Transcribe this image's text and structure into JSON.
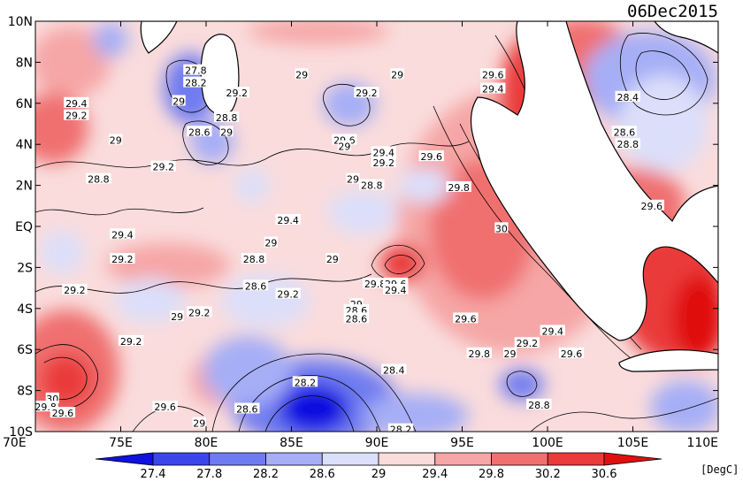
{
  "date_label": "06Dec2015",
  "unit_label": "[DegC]",
  "map": {
    "lat_ticks": [
      "10N",
      "8N",
      "6N",
      "4N",
      "2N",
      "EQ",
      "2S",
      "4S",
      "6S",
      "8S",
      "10S"
    ],
    "lon_ticks": [
      "70E",
      "75E",
      "80E",
      "85E",
      "90E",
      "95E",
      "100E",
      "105E",
      "110E"
    ],
    "lon_range": [
      70,
      110
    ],
    "lat_range": [
      -10,
      10
    ]
  },
  "colorbar": {
    "levels": [
      "27.4",
      "27.8",
      "28.2",
      "28.6",
      "29",
      "29.4",
      "29.8",
      "30.2",
      "30.6"
    ],
    "colors": [
      "#1010e0",
      "#3a46ea",
      "#6f7bf0",
      "#a6aef6",
      "#dcdffa",
      "#fadcdc",
      "#f6a6a6",
      "#f07070",
      "#ea3a3a",
      "#e01010"
    ]
  },
  "contour_labels": [
    {
      "text": "27.8",
      "lon": 79.4,
      "lat": 7.6
    },
    {
      "text": "28.2",
      "lon": 79.4,
      "lat": 7.0
    },
    {
      "text": "29",
      "lon": 85.6,
      "lat": 7.4
    },
    {
      "text": "29",
      "lon": 91.2,
      "lat": 7.4
    },
    {
      "text": "29.6",
      "lon": 96.8,
      "lat": 7.4
    },
    {
      "text": "29.4",
      "lon": 96.8,
      "lat": 6.7
    },
    {
      "text": "29.2",
      "lon": 81.8,
      "lat": 6.5
    },
    {
      "text": "29.2",
      "lon": 89.4,
      "lat": 6.5
    },
    {
      "text": "29.4",
      "lon": 72.4,
      "lat": 6.0
    },
    {
      "text": "29",
      "lon": 78.4,
      "lat": 6.1
    },
    {
      "text": "29.2",
      "lon": 72.4,
      "lat": 5.4
    },
    {
      "text": "28.8",
      "lon": 81.2,
      "lat": 5.3
    },
    {
      "text": "28.6",
      "lon": 79.6,
      "lat": 4.6
    },
    {
      "text": "29",
      "lon": 81.2,
      "lat": 4.6
    },
    {
      "text": "28.4",
      "lon": 104.7,
      "lat": 6.3
    },
    {
      "text": "28.6",
      "lon": 104.5,
      "lat": 4.6
    },
    {
      "text": "28.8",
      "lon": 104.7,
      "lat": 4.0
    },
    {
      "text": "29",
      "lon": 74.7,
      "lat": 4.2
    },
    {
      "text": "29.6",
      "lon": 88.1,
      "lat": 4.2
    },
    {
      "text": "29",
      "lon": 88.1,
      "lat": 3.9
    },
    {
      "text": "29.4",
      "lon": 90.4,
      "lat": 3.6
    },
    {
      "text": "29.6",
      "lon": 93.2,
      "lat": 3.4
    },
    {
      "text": "29.2",
      "lon": 90.4,
      "lat": 3.1
    },
    {
      "text": "29.2",
      "lon": 77.5,
      "lat": 2.9
    },
    {
      "text": "28.8",
      "lon": 73.7,
      "lat": 2.3
    },
    {
      "text": "29",
      "lon": 88.6,
      "lat": 2.3
    },
    {
      "text": "28.8",
      "lon": 89.7,
      "lat": 2.0
    },
    {
      "text": "29.8",
      "lon": 94.8,
      "lat": 1.9
    },
    {
      "text": "29.6",
      "lon": 106.1,
      "lat": 1.0
    },
    {
      "text": "29.4",
      "lon": 84.8,
      "lat": 0.3
    },
    {
      "text": "30",
      "lon": 97.3,
      "lat": -0.1
    },
    {
      "text": "29.4",
      "lon": 75.1,
      "lat": -0.4
    },
    {
      "text": "29",
      "lon": 83.8,
      "lat": -0.8
    },
    {
      "text": "29.2",
      "lon": 75.1,
      "lat": -1.6
    },
    {
      "text": "28.8",
      "lon": 82.8,
      "lat": -1.6
    },
    {
      "text": "29",
      "lon": 87.4,
      "lat": -1.6
    },
    {
      "text": "29.2",
      "lon": 72.3,
      "lat": -3.1
    },
    {
      "text": "29.8",
      "lon": 89.9,
      "lat": -2.8
    },
    {
      "text": "29.6",
      "lon": 91.1,
      "lat": -2.8
    },
    {
      "text": "28.6",
      "lon": 82.9,
      "lat": -2.9
    },
    {
      "text": "29.4",
      "lon": 91.1,
      "lat": -3.1
    },
    {
      "text": "29.2",
      "lon": 84.8,
      "lat": -3.3
    },
    {
      "text": "29",
      "lon": 88.8,
      "lat": -3.8
    },
    {
      "text": "29.2",
      "lon": 79.6,
      "lat": -4.2
    },
    {
      "text": "28.6",
      "lon": 88.8,
      "lat": -4.1
    },
    {
      "text": "28.6",
      "lon": 88.8,
      "lat": -4.5
    },
    {
      "text": "29",
      "lon": 78.3,
      "lat": -4.4
    },
    {
      "text": "29.6",
      "lon": 95.2,
      "lat": -4.5
    },
    {
      "text": "29.4",
      "lon": 100.3,
      "lat": -5.1
    },
    {
      "text": "29.2",
      "lon": 75.6,
      "lat": -5.6
    },
    {
      "text": "29.2",
      "lon": 98.8,
      "lat": -5.7
    },
    {
      "text": "29.8",
      "lon": 96.0,
      "lat": -6.2
    },
    {
      "text": "29",
      "lon": 97.8,
      "lat": -6.2
    },
    {
      "text": "29.6",
      "lon": 101.4,
      "lat": -6.2
    },
    {
      "text": "28.4",
      "lon": 91.0,
      "lat": -7.0
    },
    {
      "text": "28.2",
      "lon": 85.8,
      "lat": -7.6
    },
    {
      "text": "30",
      "lon": 71.0,
      "lat": -8.4
    },
    {
      "text": "29.8",
      "lon": 70.6,
      "lat": -8.8
    },
    {
      "text": "29.6",
      "lon": 71.6,
      "lat": -9.1
    },
    {
      "text": "29.6",
      "lon": 77.6,
      "lat": -8.8
    },
    {
      "text": "28.6",
      "lon": 82.4,
      "lat": -8.9
    },
    {
      "text": "28.8",
      "lon": 99.5,
      "lat": -8.7
    },
    {
      "text": "29",
      "lon": 79.6,
      "lat": -9.6
    },
    {
      "text": "28.2",
      "lon": 91.4,
      "lat": -9.9
    }
  ]
}
